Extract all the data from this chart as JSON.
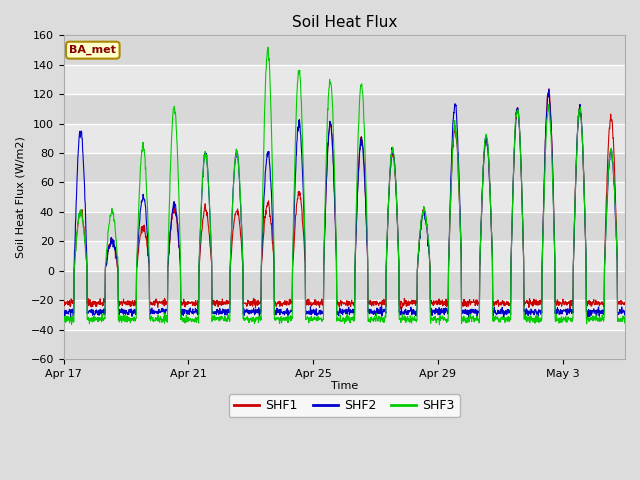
{
  "title": "Soil Heat Flux",
  "ylabel": "Soil Heat Flux (W/m2)",
  "xlabel": "Time",
  "ylim": [
    -60,
    160
  ],
  "yticks": [
    -60,
    -40,
    -20,
    0,
    20,
    40,
    60,
    80,
    100,
    120,
    140,
    160
  ],
  "xtick_labels": [
    "Apr 17",
    "Apr 21",
    "Apr 25",
    "Apr 29",
    "May 3"
  ],
  "xtick_positions": [
    0,
    4,
    8,
    12,
    16
  ],
  "legend_label": "BA_met",
  "shf1_color": "#cc0000",
  "shf2_color": "#0000cc",
  "shf3_color": "#00cc00",
  "bg_color": "#dcdcdc",
  "plot_bg_light": "#f0f0f0",
  "plot_bg_dark": "#e0e0e0",
  "grid_color": "#ffffff",
  "n_days": 18,
  "points_per_day": 96,
  "day_peaks_shf1": [
    40,
    20,
    30,
    42,
    42,
    42,
    45,
    53,
    100,
    90,
    80,
    40,
    95,
    90,
    110,
    122,
    110,
    105
  ],
  "day_peaks_shf2": [
    95,
    20,
    50,
    45,
    80,
    80,
    80,
    100,
    100,
    88,
    82,
    40,
    113,
    90,
    110,
    120,
    110,
    80
  ],
  "day_peaks_shf3": [
    40,
    40,
    85,
    112,
    80,
    80,
    150,
    136,
    130,
    126,
    82,
    42,
    98,
    92,
    110,
    110,
    110,
    82
  ],
  "night_shf1": -22,
  "night_shf2": -28,
  "night_shf3": -33
}
